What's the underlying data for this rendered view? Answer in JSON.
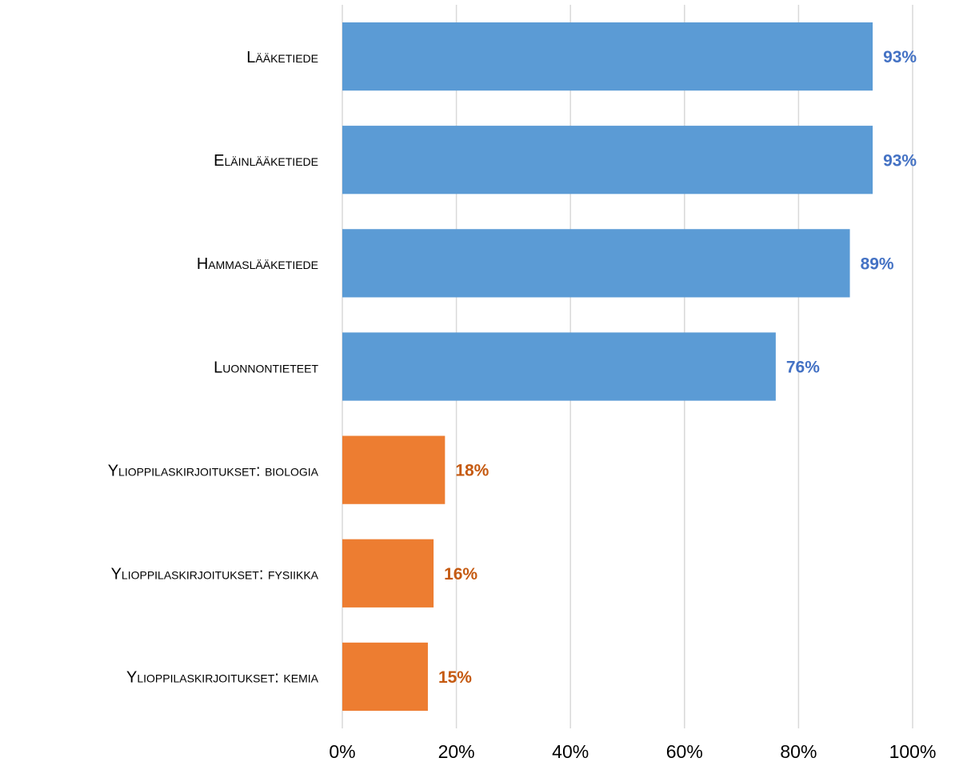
{
  "chart_data": {
    "type": "hbar",
    "categories": [
      "Lääketiede",
      "Eläinlääketiede",
      "Hammaslääketiede",
      "Luonnontieteet",
      "Ylioppilaskirjoitukset: biologia",
      "Ylioppilaskirjoitukset: fysiikka",
      "Ylioppilaskirjoitukset: kemia"
    ],
    "values": [
      93,
      93,
      89,
      76,
      18,
      16,
      15
    ],
    "value_labels": [
      "93%",
      "93%",
      "89%",
      "76%",
      "18%",
      "16%",
      "15%"
    ],
    "colors": [
      "#5b9bd5",
      "#5b9bd5",
      "#5b9bd5",
      "#5b9bd5",
      "#ed7d31",
      "#ed7d31",
      "#ed7d31"
    ],
    "value_label_colors": [
      "#4472c4",
      "#4472c4",
      "#4472c4",
      "#4472c4",
      "#c55a11",
      "#c55a11",
      "#c55a11"
    ],
    "xlim": [
      0,
      100
    ],
    "xticks": [
      {
        "value": 0,
        "label": "0%"
      },
      {
        "value": 20,
        "label": "20%"
      },
      {
        "value": 40,
        "label": "40%"
      },
      {
        "value": 60,
        "label": "60%"
      },
      {
        "value": 80,
        "label": "80%"
      },
      {
        "value": 100,
        "label": "100%"
      }
    ],
    "grid": true
  }
}
